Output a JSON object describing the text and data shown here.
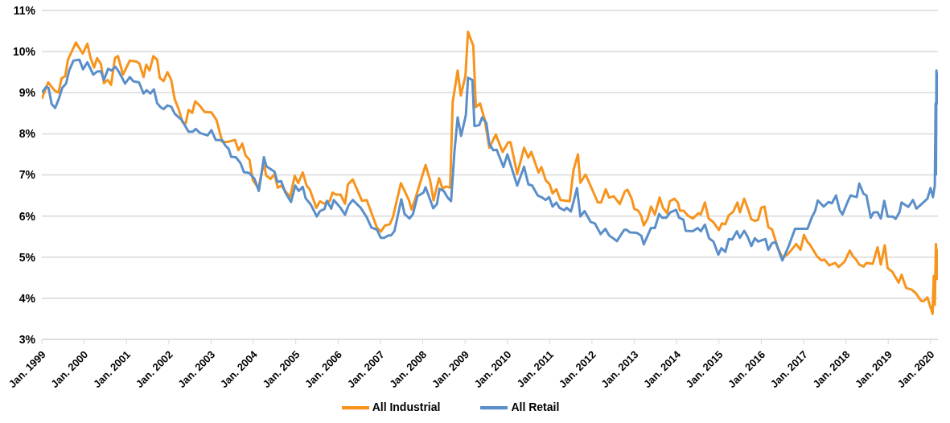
{
  "chart_data": {
    "type": "line",
    "xlim": [
      "1999-01-01",
      "2020-03-05"
    ],
    "ylim": [
      3,
      11
    ],
    "xticks": [
      {
        "value": "1999-01",
        "label": "Jan. 1999"
      },
      {
        "value": "2000-01",
        "label": "Jan. 2000"
      },
      {
        "value": "2001-01",
        "label": "Jan. 2001"
      },
      {
        "value": "2002-01",
        "label": "Jan. 2002"
      },
      {
        "value": "2003-01",
        "label": "Jan. 2003"
      },
      {
        "value": "2004-01",
        "label": "Jan. 2004"
      },
      {
        "value": "2005-01",
        "label": "Jan. 2005"
      },
      {
        "value": "2006-01",
        "label": "Jan. 2006"
      },
      {
        "value": "2007-01",
        "label": "Jan. 2007"
      },
      {
        "value": "2008-01",
        "label": "Jan. 2008"
      },
      {
        "value": "2009-01",
        "label": "Jan. 2009"
      },
      {
        "value": "2010-01",
        "label": "Jan. 2010"
      },
      {
        "value": "2011-01",
        "label": "Jan. 2011"
      },
      {
        "value": "2012-01",
        "label": "Jan. 2012"
      },
      {
        "value": "2013-01",
        "label": "Jan. 2013"
      },
      {
        "value": "2014-01",
        "label": "Jan. 2014"
      },
      {
        "value": "2015-01",
        "label": "Jan. 2015"
      },
      {
        "value": "2016-01",
        "label": "Jan. 2016"
      },
      {
        "value": "2017-01",
        "label": "Jan. 2017"
      },
      {
        "value": "2018-01",
        "label": "Jan. 2018"
      },
      {
        "value": "2019-01",
        "label": "Jan. 2019"
      },
      {
        "value": "2020-01",
        "label": "Jan. 2020"
      }
    ],
    "yticks": [
      {
        "value": 3,
        "label": "3%"
      },
      {
        "value": 4,
        "label": "4%"
      },
      {
        "value": 5,
        "label": "5%"
      },
      {
        "value": 6,
        "label": "6%"
      },
      {
        "value": 7,
        "label": "7%"
      },
      {
        "value": 8,
        "label": "8%"
      },
      {
        "value": 9,
        "label": "9%"
      },
      {
        "value": 10,
        "label": "10%"
      },
      {
        "value": 11,
        "label": "11%"
      }
    ],
    "grid": "y",
    "legend": "bottom",
    "marker": "none",
    "line_style": "solid",
    "series": [
      {
        "name": "All Industrial",
        "color": "#f7941d",
        "x": [
          "1999-01-01",
          "1999-02-25",
          "1999-04-19",
          "1999-05-25",
          "1999-06-20",
          "1999-07-22",
          "1999-08-14",
          "1999-10-22",
          "1999-12-20",
          "2000-01-29",
          "2000-02-25",
          "2000-03-27",
          "2000-04-22",
          "2000-05-25",
          "2000-06-20",
          "2000-07-22",
          "2000-08-21",
          "2000-09-23",
          "2000-10-19",
          "2000-12-02",
          "2001-01-29",
          "2001-03-27",
          "2001-04-22",
          "2001-05-28",
          "2001-06-20",
          "2001-07-19",
          "2001-08-21",
          "2001-09-23",
          "2001-10-15",
          "2001-11-17",
          "2001-12-20",
          "2002-01-22",
          "2002-02-21",
          "2002-03-27",
          "2002-04-29",
          "2002-05-28",
          "2002-06-20",
          "2002-07-22",
          "2002-08-17",
          "2002-09-20",
          "2002-11-07",
          "2003-01-04",
          "2003-02-17",
          "2003-04-08",
          "2003-05-21",
          "2003-07-26",
          "2003-08-25",
          "2003-09-27",
          "2003-10-26",
          "2003-11-28",
          "2003-12-27",
          "2004-02-14",
          "2004-04-01",
          "2004-04-19",
          "2004-05-28",
          "2004-07-01",
          "2004-07-29",
          "2004-08-28",
          "2004-10-15",
          "2004-11-14",
          "2004-12-23",
          "2005-01-22",
          "2005-03-02",
          "2005-04-04",
          "2005-05-03",
          "2005-06-27",
          "2005-07-29",
          "2005-09-02",
          "2005-10-22",
          "2005-11-14",
          "2005-12-13",
          "2006-01-22",
          "2006-03-02",
          "2006-03-27",
          "2006-05-07",
          "2006-07-26",
          "2006-09-05",
          "2006-12-02",
          "2007-01-04",
          "2007-02-10",
          "2007-03-23",
          "2007-04-19",
          "2007-06-27",
          "2007-09-05",
          "2007-09-27",
          "2007-10-29",
          "2008-01-26",
          "2008-03-05",
          "2008-04-04",
          "2008-05-21",
          "2008-06-20",
          "2008-07-22",
          "2008-08-25",
          "2008-09-16",
          "2008-10-29",
          "2008-11-25",
          "2009-01-04",
          "2009-01-26",
          "2009-03-13",
          "2009-04-04",
          "2009-05-10",
          "2009-06-20",
          "2009-07-29",
          "2009-09-23",
          "2009-11-21",
          "2010-01-08",
          "2010-01-29",
          "2010-03-27",
          "2010-05-25",
          "2010-07-01",
          "2010-07-26",
          "2010-09-27",
          "2010-10-22",
          "2010-11-28",
          "2011-01-01",
          "2011-01-26",
          "2011-02-28",
          "2011-04-04",
          "2011-06-23",
          "2011-07-26",
          "2011-09-02",
          "2011-09-23",
          "2011-11-07",
          "2012-02-21",
          "2012-03-20",
          "2012-04-29",
          "2012-05-28",
          "2012-07-08",
          "2012-08-28",
          "2012-10-11",
          "2012-11-03",
          "2012-12-09",
          "2013-01-01",
          "2013-02-03",
          "2013-02-28",
          "2013-03-23",
          "2013-04-26",
          "2013-05-25",
          "2013-06-27",
          "2013-08-07",
          "2013-09-05",
          "2013-10-11",
          "2013-11-03",
          "2013-12-13",
          "2014-01-11",
          "2014-01-29",
          "2014-03-02",
          "2014-04-08",
          "2014-05-21",
          "2014-07-08",
          "2014-07-29",
          "2014-09-02",
          "2014-10-04",
          "2014-11-14",
          "2015-01-01",
          "2015-01-26",
          "2015-02-25",
          "2015-03-27",
          "2015-05-03",
          "2015-06-09",
          "2015-07-01",
          "2015-08-07",
          "2015-09-05",
          "2015-10-08",
          "2015-11-07",
          "2015-12-05",
          "2016-01-01",
          "2016-01-29",
          "2016-03-02",
          "2016-04-04",
          "2016-05-21",
          "2016-07-01",
          "2016-08-21",
          "2016-10-29",
          "2016-12-05",
          "2017-01-04",
          "2017-02-03",
          "2017-02-28",
          "2017-04-29",
          "2017-06-05",
          "2017-07-01",
          "2017-08-10",
          "2017-10-01",
          "2017-10-29",
          "2017-12-20",
          "2018-02-03",
          "2018-02-28",
          "2018-03-27",
          "2018-04-26",
          "2018-06-02",
          "2018-06-27",
          "2018-08-21",
          "2018-10-01",
          "2018-10-29",
          "2018-12-02",
          "2018-12-27",
          "2019-02-07",
          "2019-04-01",
          "2019-04-26",
          "2019-06-05",
          "2019-07-22",
          "2019-08-25",
          "2019-10-11",
          "2019-11-03",
          "2019-12-05",
          "2020-01-19",
          "2020-01-29",
          "2020-02-07",
          "2020-02-17",
          "2020-02-28",
          "2020-03-05"
        ],
        "values": [
          8.85,
          9.25,
          9.06,
          9.0,
          9.35,
          9.4,
          9.8,
          10.22,
          9.95,
          10.19,
          9.85,
          9.61,
          9.84,
          9.7,
          9.23,
          9.31,
          9.19,
          9.84,
          9.89,
          9.44,
          9.78,
          9.76,
          9.71,
          9.38,
          9.68,
          9.54,
          9.89,
          9.8,
          9.36,
          9.28,
          9.5,
          9.31,
          8.84,
          8.6,
          8.28,
          8.26,
          8.58,
          8.51,
          8.79,
          8.7,
          8.53,
          8.52,
          8.33,
          7.8,
          7.8,
          7.85,
          7.6,
          7.76,
          7.47,
          7.37,
          6.88,
          6.67,
          7.31,
          6.99,
          6.9,
          7.02,
          6.69,
          6.74,
          6.56,
          6.47,
          6.98,
          6.8,
          7.06,
          6.74,
          6.64,
          6.2,
          6.36,
          6.3,
          6.37,
          6.57,
          6.52,
          6.52,
          6.3,
          6.77,
          6.89,
          6.37,
          6.39,
          5.72,
          5.62,
          5.77,
          5.8,
          5.97,
          6.8,
          6.38,
          6.16,
          6.42,
          7.24,
          6.87,
          6.38,
          6.92,
          6.67,
          6.72,
          6.69,
          8.77,
          9.54,
          8.93,
          9.41,
          10.48,
          10.14,
          8.65,
          8.74,
          8.34,
          7.66,
          7.98,
          7.56,
          7.79,
          7.79,
          7.02,
          7.66,
          7.42,
          7.56,
          7.06,
          7.19,
          6.87,
          6.77,
          6.55,
          6.65,
          6.39,
          6.36,
          7.12,
          7.5,
          6.81,
          7.01,
          6.33,
          6.33,
          6.65,
          6.45,
          6.48,
          6.29,
          6.6,
          6.64,
          6.42,
          6.17,
          6.13,
          6.01,
          5.77,
          5.94,
          6.23,
          6.04,
          6.45,
          6.2,
          6.07,
          6.36,
          6.42,
          6.33,
          6.13,
          6.13,
          6.01,
          5.94,
          6.07,
          6.04,
          6.33,
          5.94,
          5.85,
          5.66,
          5.82,
          5.8,
          6.02,
          6.1,
          6.33,
          6.09,
          6.42,
          6.2,
          5.92,
          5.88,
          5.91,
          6.2,
          6.23,
          5.73,
          5.67,
          5.24,
          4.99,
          5.08,
          5.32,
          5.18,
          5.54,
          5.37,
          5.29,
          5.01,
          4.92,
          4.94,
          4.8,
          4.86,
          4.76,
          4.89,
          5.16,
          5.03,
          4.95,
          4.82,
          4.77,
          4.86,
          4.84,
          5.24,
          4.82,
          5.29,
          4.73,
          4.64,
          4.38,
          4.57,
          4.25,
          4.21,
          4.13,
          3.94,
          3.93,
          4.02,
          3.62,
          4.54,
          3.84,
          5.32,
          4.47,
          5.2
        ]
      },
      {
        "name": "All Retail",
        "color": "#5b8fc9",
        "x": [
          "1999-01-01",
          "1999-02-07",
          "1999-02-28",
          "1999-03-27",
          "1999-04-26",
          "1999-05-28",
          "1999-06-27",
          "1999-07-29",
          "1999-08-25",
          "1999-10-01",
          "1999-11-21",
          "1999-12-23",
          "2000-01-29",
          "2000-03-20",
          "2000-04-26",
          "2000-05-25",
          "2000-06-20",
          "2000-07-26",
          "2000-08-25",
          "2000-09-27",
          "2000-10-29",
          "2000-12-20",
          "2001-01-29",
          "2001-02-28",
          "2001-04-19",
          "2001-05-28",
          "2001-06-23",
          "2001-07-26",
          "2001-08-25",
          "2001-09-23",
          "2001-10-22",
          "2001-11-17",
          "2001-12-20",
          "2002-01-22",
          "2002-02-21",
          "2002-03-27",
          "2002-04-22",
          "2002-06-20",
          "2002-07-26",
          "2002-08-21",
          "2002-09-27",
          "2002-12-02",
          "2003-01-04",
          "2003-02-10",
          "2003-04-08",
          "2003-05-03",
          "2003-06-02",
          "2003-06-23",
          "2003-08-03",
          "2003-09-13",
          "2003-10-11",
          "2003-11-25",
          "2004-01-11",
          "2004-02-17",
          "2004-04-01",
          "2004-04-22",
          "2004-07-01",
          "2004-07-26",
          "2004-08-28",
          "2004-10-01",
          "2004-11-21",
          "2004-12-27",
          "2005-01-26",
          "2005-03-02",
          "2005-03-27",
          "2005-05-10",
          "2005-07-01",
          "2005-07-29",
          "2005-09-05",
          "2005-09-27",
          "2005-11-03",
          "2005-11-25",
          "2006-01-22",
          "2006-03-02",
          "2006-04-01",
          "2006-05-07",
          "2006-07-15",
          "2006-09-05",
          "2006-10-15",
          "2006-12-02",
          "2007-01-04",
          "2007-02-03",
          "2007-03-13",
          "2007-04-04",
          "2007-05-03",
          "2007-07-01",
          "2007-07-29",
          "2007-09-09",
          "2007-10-08",
          "2007-11-17",
          "2008-01-08",
          "2008-01-26",
          "2008-04-01",
          "2008-05-03",
          "2008-05-25",
          "2008-07-01",
          "2008-08-03",
          "2008-09-02",
          "2008-10-01",
          "2008-10-29",
          "2008-11-28",
          "2009-01-08",
          "2009-01-26",
          "2009-03-05",
          "2009-03-23",
          "2009-05-03",
          "2009-05-28",
          "2009-07-04",
          "2009-07-29",
          "2009-09-02",
          "2009-10-01",
          "2009-11-28",
          "2010-01-01",
          "2010-01-29",
          "2010-03-27",
          "2010-05-25",
          "2010-07-01",
          "2010-08-03",
          "2010-09-20",
          "2010-10-22",
          "2010-11-28",
          "2010-12-27",
          "2011-01-26",
          "2011-02-28",
          "2011-03-27",
          "2011-05-07",
          "2011-05-28",
          "2011-07-04",
          "2011-08-25",
          "2011-09-23",
          "2011-10-29",
          "2011-12-20",
          "2012-01-26",
          "2012-03-16",
          "2012-04-26",
          "2012-05-28",
          "2012-08-03",
          "2012-10-04",
          "2012-10-22",
          "2012-11-25",
          "2013-01-22",
          "2013-03-02",
          "2013-03-23",
          "2013-05-25",
          "2013-06-27",
          "2013-08-03",
          "2013-08-28",
          "2013-10-04",
          "2013-11-07",
          "2013-12-27",
          "2014-01-22",
          "2014-02-28",
          "2014-03-20",
          "2014-05-21",
          "2014-07-01",
          "2014-07-29",
          "2014-09-02",
          "2014-10-08",
          "2014-11-14",
          "2014-12-27",
          "2015-01-22",
          "2015-02-25",
          "2015-03-27",
          "2015-04-26",
          "2015-06-05",
          "2015-07-01",
          "2015-08-07",
          "2015-09-05",
          "2015-10-08",
          "2015-11-07",
          "2015-12-05",
          "2016-02-07",
          "2016-03-02",
          "2016-04-04",
          "2016-05-03",
          "2016-07-01",
          "2016-08-21",
          "2016-10-19",
          "2017-02-03",
          "2017-03-13",
          "2017-04-11",
          "2017-05-03",
          "2017-06-23",
          "2017-08-03",
          "2017-09-02",
          "2017-10-08",
          "2017-11-07",
          "2017-12-02",
          "2018-01-15",
          "2018-02-10",
          "2018-04-04",
          "2018-04-26",
          "2018-06-02",
          "2018-06-27",
          "2018-08-03",
          "2018-08-28",
          "2018-10-01",
          "2018-10-29",
          "2018-11-28",
          "2018-12-27",
          "2019-02-07",
          "2019-03-05",
          "2019-04-08",
          "2019-04-26",
          "2019-06-23",
          "2019-08-03",
          "2019-09-02",
          "2019-10-11",
          "2019-12-05",
          "2020-01-01",
          "2020-01-22",
          "2020-02-07",
          "2020-02-14",
          "2020-02-17",
          "2020-02-21",
          "2020-02-28",
          "2020-03-05"
        ],
        "values": [
          9.0,
          9.14,
          9.12,
          8.72,
          8.63,
          8.85,
          9.12,
          9.22,
          9.54,
          9.78,
          9.8,
          9.57,
          9.74,
          9.44,
          9.52,
          9.52,
          9.31,
          9.58,
          9.54,
          9.63,
          9.5,
          9.22,
          9.38,
          9.28,
          9.25,
          8.98,
          9.06,
          8.98,
          9.08,
          8.74,
          8.65,
          8.6,
          8.69,
          8.66,
          8.49,
          8.4,
          8.34,
          8.05,
          8.05,
          8.12,
          8.02,
          7.96,
          8.09,
          7.85,
          7.84,
          7.72,
          7.63,
          7.44,
          7.43,
          7.28,
          7.07,
          7.05,
          6.9,
          6.61,
          7.43,
          7.21,
          7.08,
          6.83,
          6.85,
          6.58,
          6.34,
          6.74,
          6.61,
          6.71,
          6.43,
          6.28,
          5.99,
          6.12,
          6.17,
          6.37,
          6.18,
          6.39,
          6.2,
          6.03,
          6.26,
          6.39,
          6.2,
          5.97,
          5.72,
          5.67,
          5.47,
          5.47,
          5.53,
          5.53,
          5.64,
          6.41,
          6.05,
          5.94,
          6.04,
          6.48,
          6.57,
          6.7,
          6.19,
          6.29,
          6.66,
          6.61,
          6.45,
          6.36,
          7.56,
          8.4,
          7.95,
          8.46,
          9.36,
          9.31,
          8.19,
          8.21,
          8.4,
          8.26,
          7.75,
          7.6,
          7.61,
          7.19,
          7.5,
          7.25,
          6.74,
          7.2,
          6.77,
          6.74,
          6.5,
          6.46,
          6.39,
          6.46,
          6.23,
          6.33,
          6.2,
          6.14,
          6.2,
          6.11,
          6.68,
          5.99,
          6.12,
          5.86,
          5.82,
          5.56,
          5.69,
          5.53,
          5.39,
          5.66,
          5.67,
          5.6,
          5.59,
          5.52,
          5.31,
          5.71,
          5.71,
          6.05,
          5.96,
          5.96,
          6.09,
          6.15,
          5.96,
          5.91,
          5.64,
          5.63,
          5.71,
          5.63,
          5.79,
          5.46,
          5.38,
          5.06,
          5.22,
          5.13,
          5.44,
          5.43,
          5.63,
          5.47,
          5.64,
          5.5,
          5.27,
          5.46,
          5.38,
          5.44,
          5.18,
          5.34,
          5.37,
          4.92,
          5.24,
          5.69,
          5.69,
          5.97,
          6.13,
          6.38,
          6.23,
          6.34,
          6.31,
          6.5,
          6.15,
          6.04,
          6.34,
          6.5,
          6.46,
          6.79,
          6.54,
          6.5,
          5.96,
          6.09,
          6.09,
          5.94,
          6.37,
          5.99,
          5.99,
          5.93,
          6.09,
          6.33,
          6.22,
          6.39,
          6.18,
          6.28,
          6.42,
          6.68,
          6.46,
          6.74,
          8.74,
          7.01,
          9.54,
          8.74,
          9.48
        ]
      }
    ]
  }
}
